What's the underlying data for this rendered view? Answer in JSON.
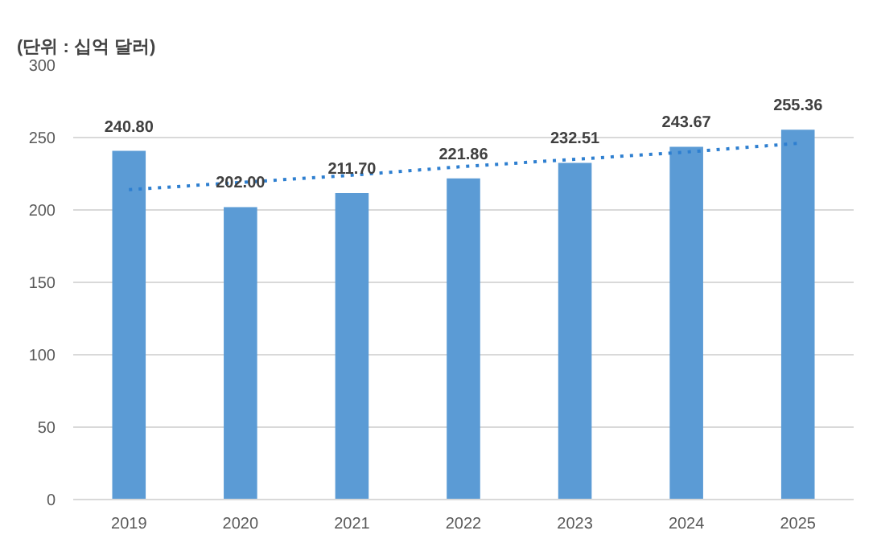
{
  "chart_data": {
    "type": "bar",
    "title": "(단위 : 십억 달러)",
    "categories": [
      "2019",
      "2020",
      "2021",
      "2022",
      "2023",
      "2024",
      "2025"
    ],
    "series": [
      {
        "color": "#5b9bd5",
        "values": [
          240.8,
          202.0,
          211.7,
          221.86,
          232.51,
          243.67,
          255.36
        ]
      },
      {
        "type": "line",
        "color": "#2e7fd0",
        "line_style": "dotted",
        "values": [
          214,
          219,
          224,
          230,
          235,
          240,
          246
        ]
      }
    ],
    "value_labels": [
      "240.80",
      "202.00",
      "211.70",
      "221.86",
      "232.51",
      "243.67",
      "255.36"
    ],
    "ylim": [
      0,
      300
    ],
    "yticks": [
      0,
      50,
      100,
      150,
      200,
      250,
      300
    ],
    "grid": "y"
  }
}
